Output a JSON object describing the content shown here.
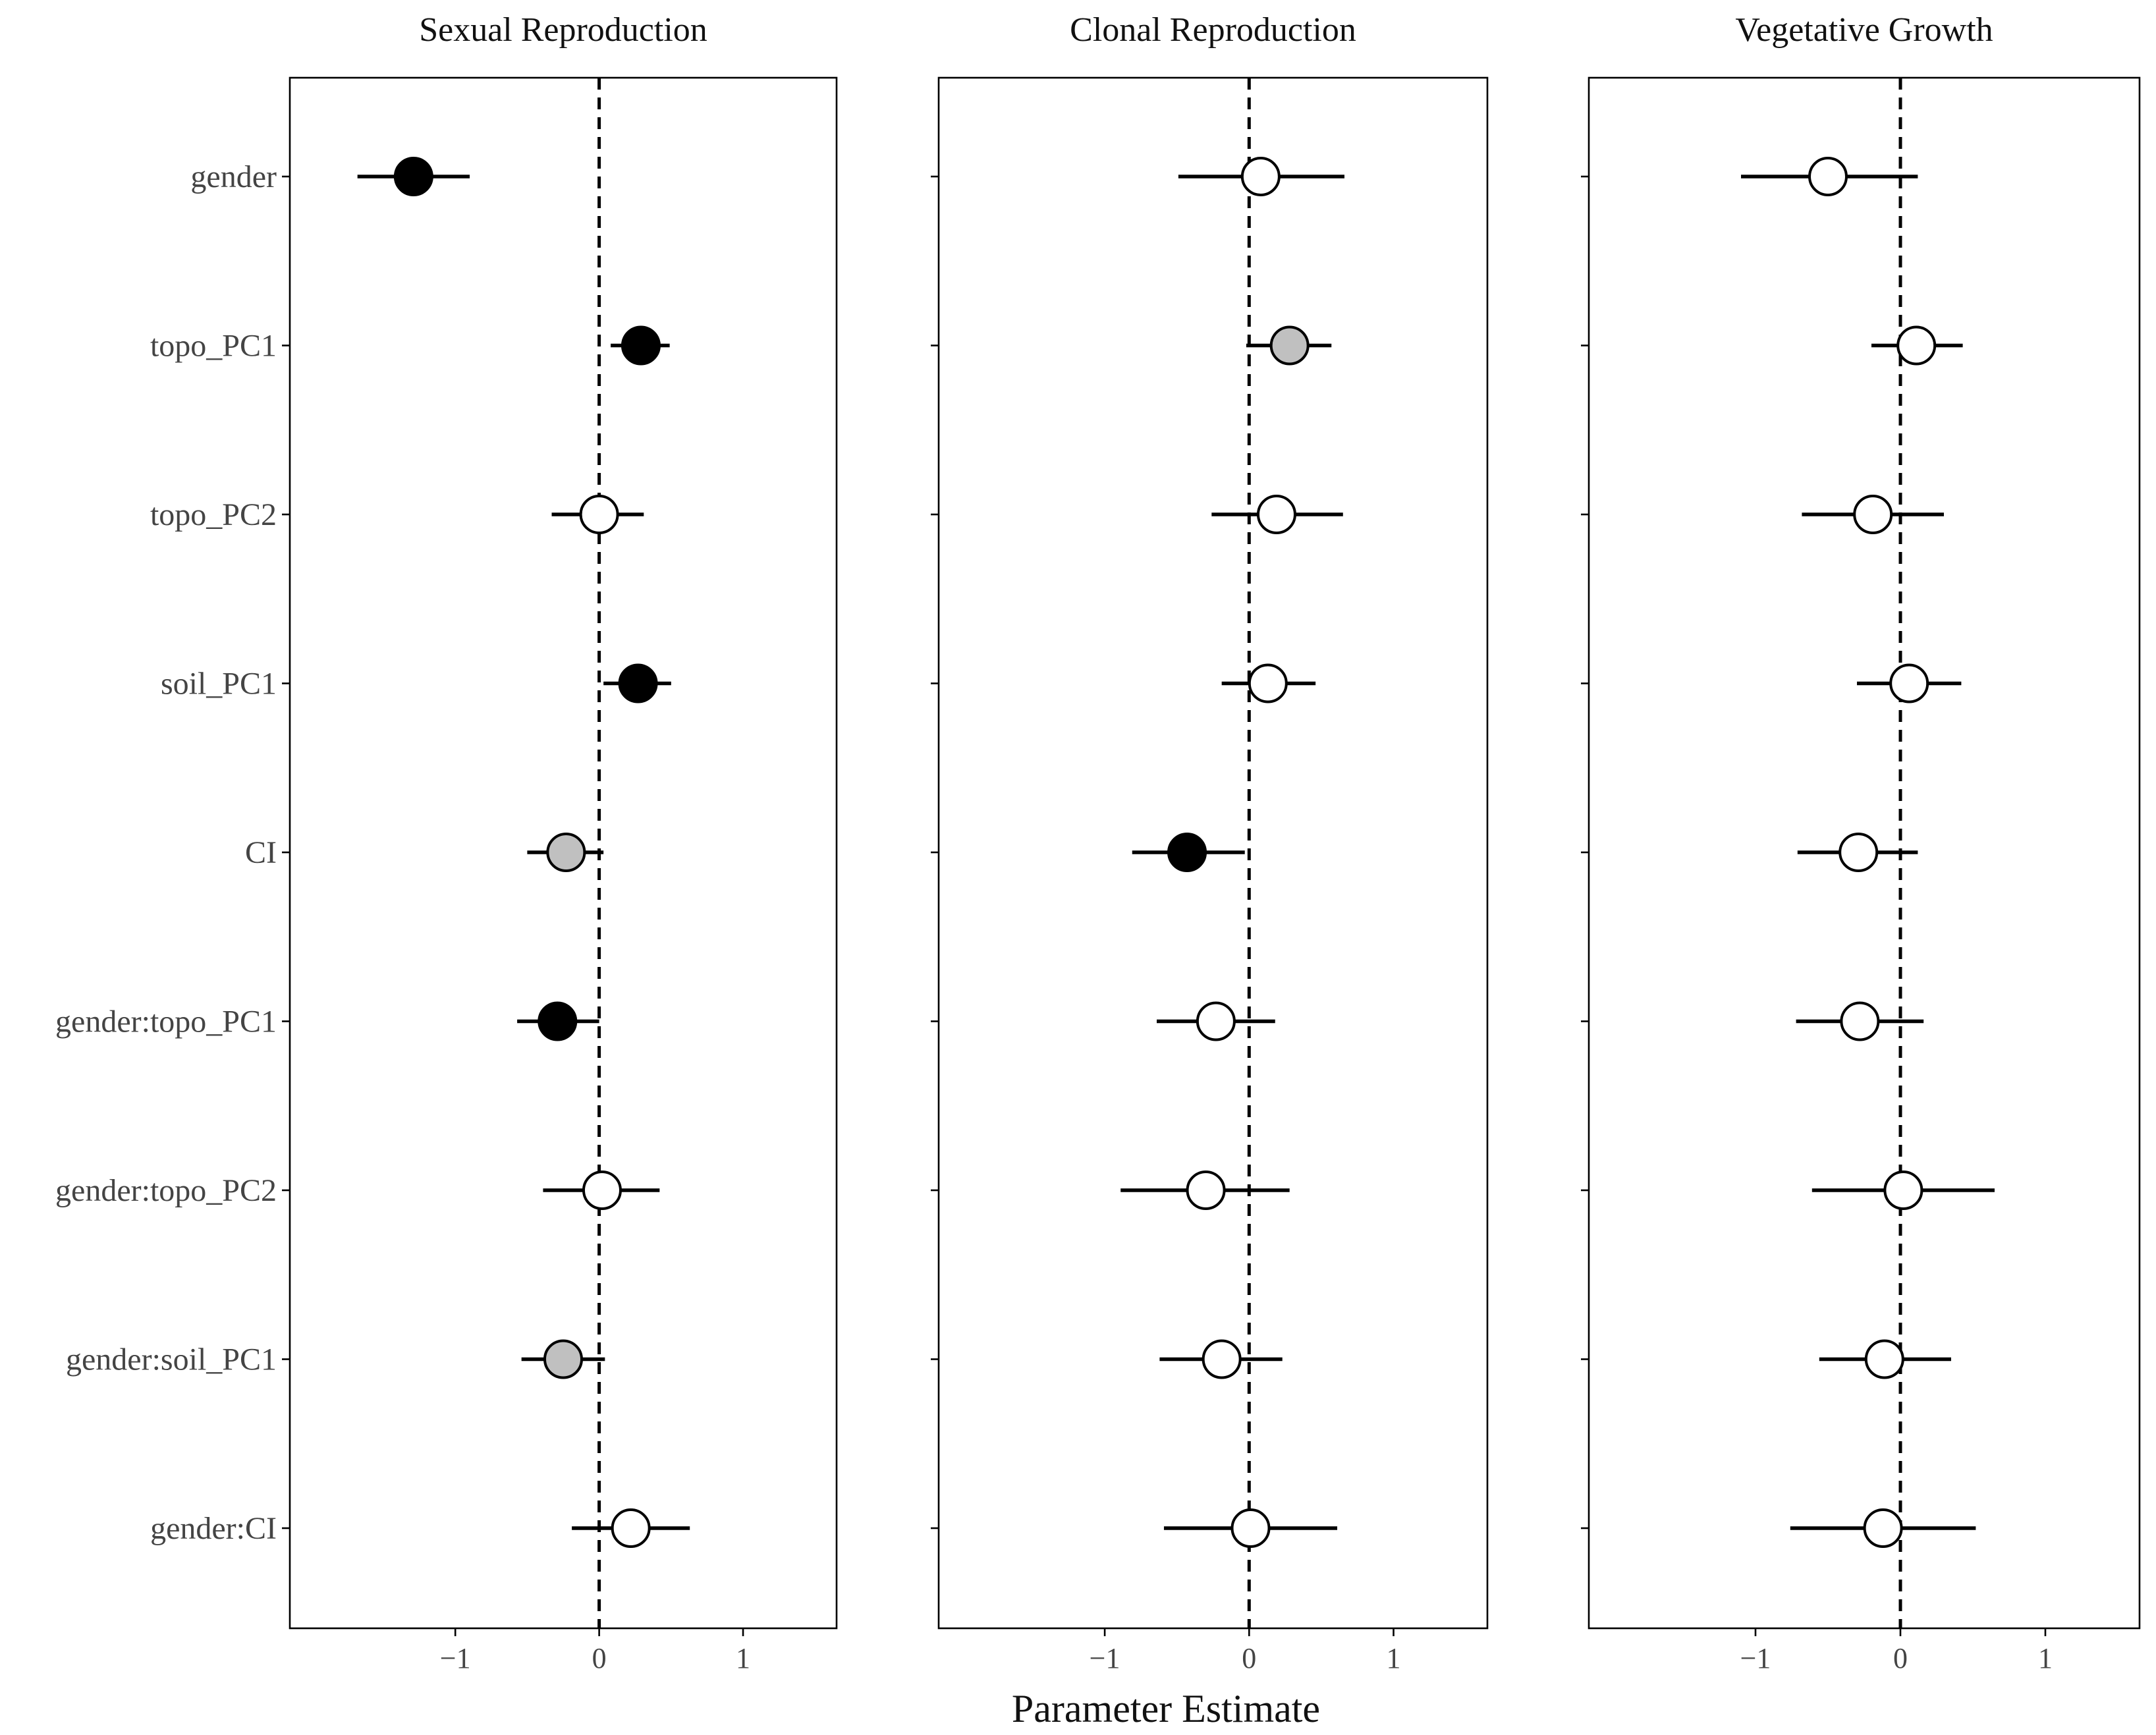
{
  "chart_data": {
    "type": "scatter",
    "xlabel": "Parameter Estimate",
    "xlim": [
      -2.15,
      1.65
    ],
    "xticks": [
      -1,
      0,
      1
    ],
    "xtick_labels": [
      "−1",
      "0",
      "1"
    ],
    "reference_line": 0,
    "terms": [
      "gender",
      "topo_PC1",
      "topo_PC2",
      "soil_PC1",
      "CI",
      "gender:topo_PC1",
      "gender:topo_PC2",
      "gender:soil_PC1",
      "gender:CI"
    ],
    "fill_colors": {
      "black": "#000000",
      "grey": "#c0c0c0",
      "white": "#ffffff"
    },
    "panels": [
      {
        "title": "Sexual Reproduction",
        "estimates": [
          {
            "term": "gender",
            "estimate": -1.29,
            "lower": -1.68,
            "upper": -0.9,
            "fill": "black"
          },
          {
            "term": "topo_PC1",
            "estimate": 0.29,
            "lower": 0.08,
            "upper": 0.49,
            "fill": "black"
          },
          {
            "term": "topo_PC2",
            "estimate": 0.0,
            "lower": -0.33,
            "upper": 0.31,
            "fill": "white"
          },
          {
            "term": "soil_PC1",
            "estimate": 0.27,
            "lower": 0.03,
            "upper": 0.5,
            "fill": "black"
          },
          {
            "term": "CI",
            "estimate": -0.23,
            "lower": -0.5,
            "upper": 0.03,
            "fill": "grey"
          },
          {
            "term": "gender:topo_PC1",
            "estimate": -0.29,
            "lower": -0.57,
            "upper": 0.0,
            "fill": "black"
          },
          {
            "term": "gender:topo_PC2",
            "estimate": 0.02,
            "lower": -0.39,
            "upper": 0.42,
            "fill": "white"
          },
          {
            "term": "gender:soil_PC1",
            "estimate": -0.25,
            "lower": -0.54,
            "upper": 0.04,
            "fill": "grey"
          },
          {
            "term": "gender:CI",
            "estimate": 0.22,
            "lower": -0.19,
            "upper": 0.63,
            "fill": "white"
          }
        ]
      },
      {
        "title": "Clonal Reproduction",
        "estimates": [
          {
            "term": "gender",
            "estimate": 0.08,
            "lower": -0.49,
            "upper": 0.66,
            "fill": "white"
          },
          {
            "term": "topo_PC1",
            "estimate": 0.28,
            "lower": -0.02,
            "upper": 0.57,
            "fill": "grey"
          },
          {
            "term": "topo_PC2",
            "estimate": 0.19,
            "lower": -0.26,
            "upper": 0.65,
            "fill": "white"
          },
          {
            "term": "soil_PC1",
            "estimate": 0.13,
            "lower": -0.19,
            "upper": 0.46,
            "fill": "white"
          },
          {
            "term": "CI",
            "estimate": -0.43,
            "lower": -0.81,
            "upper": -0.03,
            "fill": "black"
          },
          {
            "term": "gender:topo_PC1",
            "estimate": -0.23,
            "lower": -0.64,
            "upper": 0.18,
            "fill": "white"
          },
          {
            "term": "gender:topo_PC2",
            "estimate": -0.3,
            "lower": -0.89,
            "upper": 0.28,
            "fill": "white"
          },
          {
            "term": "gender:soil_PC1",
            "estimate": -0.19,
            "lower": -0.62,
            "upper": 0.23,
            "fill": "white"
          },
          {
            "term": "gender:CI",
            "estimate": 0.01,
            "lower": -0.59,
            "upper": 0.61,
            "fill": "white"
          }
        ]
      },
      {
        "title": "Vegetative Growth",
        "estimates": [
          {
            "term": "gender",
            "estimate": -0.5,
            "lower": -1.1,
            "upper": 0.12,
            "fill": "white"
          },
          {
            "term": "topo_PC1",
            "estimate": 0.11,
            "lower": -0.2,
            "upper": 0.43,
            "fill": "white"
          },
          {
            "term": "topo_PC2",
            "estimate": -0.19,
            "lower": -0.68,
            "upper": 0.3,
            "fill": "white"
          },
          {
            "term": "soil_PC1",
            "estimate": 0.06,
            "lower": -0.3,
            "upper": 0.42,
            "fill": "white"
          },
          {
            "term": "CI",
            "estimate": -0.29,
            "lower": -0.71,
            "upper": 0.12,
            "fill": "white"
          },
          {
            "term": "gender:topo_PC1",
            "estimate": -0.28,
            "lower": -0.72,
            "upper": 0.16,
            "fill": "white"
          },
          {
            "term": "gender:topo_PC2",
            "estimate": 0.02,
            "lower": -0.61,
            "upper": 0.65,
            "fill": "white"
          },
          {
            "term": "gender:soil_PC1",
            "estimate": -0.11,
            "lower": -0.56,
            "upper": 0.35,
            "fill": "white"
          },
          {
            "term": "gender:CI",
            "estimate": -0.12,
            "lower": -0.76,
            "upper": 0.52,
            "fill": "white"
          }
        ]
      }
    ]
  }
}
